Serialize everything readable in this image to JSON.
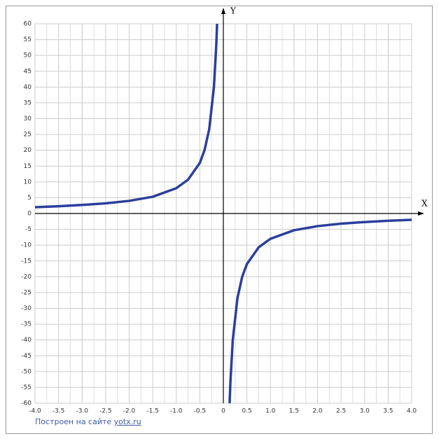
{
  "chart_data": {
    "type": "line",
    "x_label": "X",
    "y_label": "Y",
    "x": [
      -4,
      -3.5,
      -3,
      -2.5,
      -2,
      -1.5,
      -1,
      -0.75,
      -0.5,
      -0.4,
      -0.3,
      -0.2,
      -0.15,
      -0.133,
      0,
      0.133,
      0.15,
      0.2,
      0.3,
      0.4,
      0.5,
      0.75,
      1,
      1.5,
      2,
      2.5,
      3,
      3.5,
      4
    ],
    "series": [
      {
        "color": "#2b3f9c",
        "values": [
          2,
          2.3,
          2.7,
          3.2,
          4,
          5.3,
          8,
          10.7,
          16,
          20,
          26.7,
          40,
          53.3,
          60,
          null,
          -60,
          -53.3,
          -40,
          -26.7,
          -20,
          -16,
          -10.7,
          -8,
          -5.3,
          -4,
          -3.2,
          -2.7,
          -2.3,
          -2
        ]
      }
    ],
    "xlim": [
      -4,
      4
    ],
    "ylim": [
      -60,
      60
    ],
    "xticks": [
      {
        "value": -4,
        "label": "-4.0"
      },
      {
        "value": -3.5,
        "label": "-3.5"
      },
      {
        "value": -3,
        "label": "-3.0"
      },
      {
        "value": -2.5,
        "label": "-2.5"
      },
      {
        "value": -2,
        "label": "-2.0"
      },
      {
        "value": -1.5,
        "label": "-1.5"
      },
      {
        "value": -1,
        "label": "-1.0"
      },
      {
        "value": -0.5,
        "label": "-0.5"
      },
      0,
      0.5,
      {
        "value": 1,
        "label": "1.0"
      },
      1.5,
      {
        "value": 2,
        "label": "2.0"
      },
      2.5,
      {
        "value": 3,
        "label": "3.0"
      },
      3.5,
      {
        "value": 4,
        "label": "4.0"
      }
    ],
    "yticks": [
      -60,
      -55,
      -50,
      -45,
      -40,
      -35,
      -30,
      -25,
      -20,
      -15,
      -10,
      -5,
      0,
      5,
      10,
      15,
      20,
      25,
      30,
      35,
      40,
      45,
      50,
      55,
      60
    ],
    "grid": true,
    "footer": {
      "text": "Построен на сайте ",
      "link": "yotx.ru"
    }
  }
}
